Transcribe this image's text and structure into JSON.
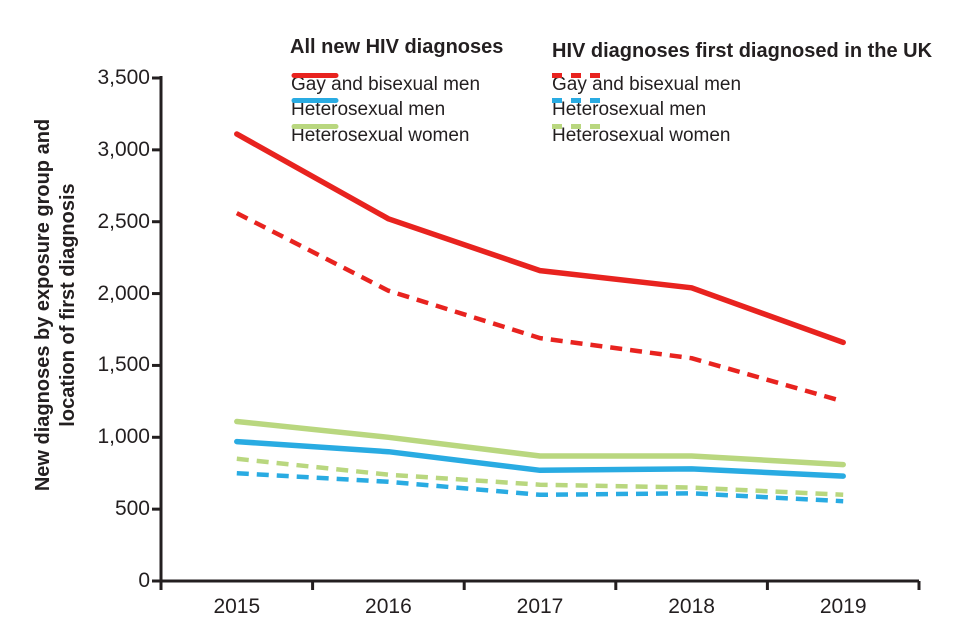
{
  "figure": {
    "y_axis_title_line1": "New diagnoses by exposure group and",
    "y_axis_title_line2": "location of first diagnosis"
  },
  "legend": {
    "groups": [
      {
        "header": "All new HIV diagnoses",
        "items": [
          {
            "label": "Gay and bisexual men",
            "series": 0
          },
          {
            "label": "Heterosexual men",
            "series": 1
          },
          {
            "label": "Heterosexual women",
            "series": 2
          }
        ]
      },
      {
        "header": "HIV diagnoses first diagnosed in the UK",
        "items": [
          {
            "label": "Gay and bisexual men",
            "series": 3
          },
          {
            "label": "Heterosexual men",
            "series": 4
          },
          {
            "label": "Heterosexual women",
            "series": 5
          }
        ]
      }
    ]
  },
  "colors": {
    "red": "#e8231f",
    "blue": "#29abe2",
    "green": "#b9d77f",
    "axis": "#231f20"
  },
  "chart_data": {
    "type": "line",
    "x": [
      "2015",
      "2016",
      "2017",
      "2018",
      "2019"
    ],
    "series": [
      {
        "name": "All new HIV diagnoses - Gay and bisexual men",
        "style": "solid",
        "color": "#e8231f",
        "values": [
          3110,
          2520,
          2160,
          2040,
          1660
        ]
      },
      {
        "name": "All new HIV diagnoses - Heterosexual men",
        "style": "solid",
        "color": "#29abe2",
        "values": [
          970,
          900,
          770,
          780,
          730
        ]
      },
      {
        "name": "All new HIV diagnoses - Heterosexual women",
        "style": "solid",
        "color": "#b9d77f",
        "values": [
          1110,
          1000,
          870,
          870,
          810
        ]
      },
      {
        "name": "HIV diagnoses first diagnosed in the UK - Gay and bisexual men",
        "style": "dashed",
        "color": "#e8231f",
        "values": [
          2560,
          2020,
          1690,
          1550,
          1250
        ]
      },
      {
        "name": "HIV diagnoses first diagnosed in the UK - Heterosexual men",
        "style": "dashed",
        "color": "#29abe2",
        "values": [
          750,
          690,
          600,
          610,
          555
        ]
      },
      {
        "name": "HIV diagnoses first diagnosed in the UK - Heterosexual women",
        "style": "dashed",
        "color": "#b9d77f",
        "values": [
          850,
          740,
          670,
          650,
          600
        ]
      }
    ],
    "title": "",
    "xlabel": "",
    "ylabel": "New diagnoses by exposure group and location of first diagnosis",
    "ylim": [
      0,
      3500
    ],
    "ytick_step": 500,
    "ytick_labels": [
      "0",
      "500",
      "1,000",
      "1,500",
      "2,000",
      "2,500",
      "3,000",
      "3,500"
    ],
    "grid": false,
    "legend_position": "top"
  }
}
